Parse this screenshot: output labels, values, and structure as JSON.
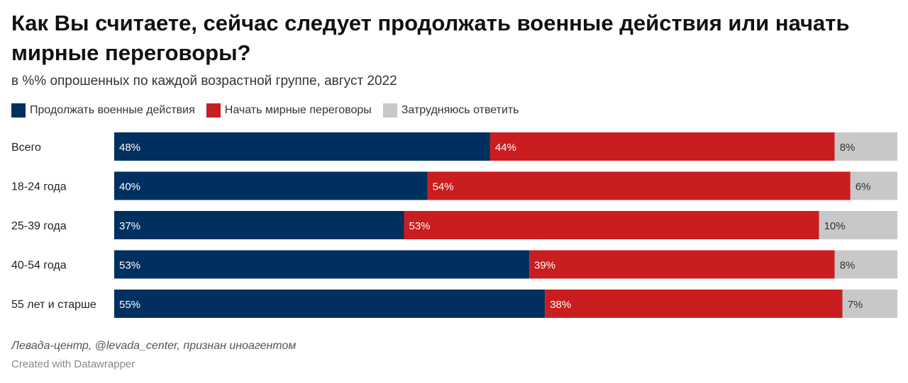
{
  "title": "Как Вы считаете, сейчас следует продолжать военные действия или начать мирные переговоры?",
  "subtitle": "в %% опрошенных по каждой возрастной группе, август 2022",
  "source": "Левада-центр, @levada_center, признан иноагентом",
  "credit": "Created with Datawrapper",
  "chart_data": {
    "type": "bar",
    "stacked": true,
    "orientation": "horizontal",
    "categories": [
      "Всего",
      "18-24 года",
      "25-39 года",
      "40-54 года",
      "55 лет и старше"
    ],
    "series": [
      {
        "name": "Продолжать военные действия",
        "color": "#00305f",
        "values": [
          48,
          40,
          37,
          53,
          55
        ]
      },
      {
        "name": "Начать мирные переговоры",
        "color": "#c91d1f",
        "values": [
          44,
          54,
          53,
          39,
          38
        ]
      },
      {
        "name": "Затрудняюсь ответить",
        "color": "#c8c8c8",
        "values": [
          8,
          6,
          10,
          8,
          7
        ]
      }
    ],
    "value_suffix": "%",
    "xlim": [
      0,
      100
    ],
    "legend_position": "top-left",
    "label_colors": {
      "dark": "#ffffff",
      "light": "#333333"
    }
  }
}
